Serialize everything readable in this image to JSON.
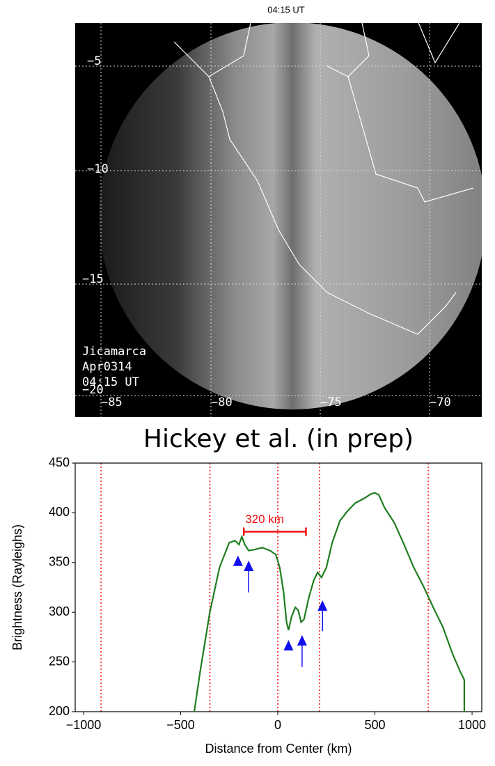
{
  "image": {
    "title": "04:15 UT",
    "lat_labels": [
      "−5",
      "−10",
      "−15",
      "−20"
    ],
    "lon_labels": [
      "−85",
      "−80",
      "−75",
      "−70"
    ],
    "caption": [
      "Jicamarca",
      "Apr0314",
      "04:15 UT"
    ]
  },
  "credit": "Hickey et al. (in prep)",
  "chart_data": {
    "type": "line",
    "xlabel": "Distance from Center (km)",
    "ylabel": "Brightness (Rayleighs)",
    "x": [
      -430,
      -400,
      -350,
      -300,
      -250,
      -220,
      -200,
      -185,
      -170,
      -150,
      -120,
      -80,
      -40,
      -10,
      10,
      30,
      45,
      55,
      70,
      90,
      105,
      120,
      135,
      160,
      185,
      205,
      225,
      250,
      280,
      320,
      360,
      400,
      440,
      480,
      500,
      520,
      550,
      600,
      650,
      700,
      750,
      800,
      850,
      900,
      940,
      960,
      960
    ],
    "values": [
      200,
      240,
      300,
      345,
      370,
      372,
      368,
      376,
      368,
      362,
      363,
      365,
      362,
      358,
      345,
      320,
      290,
      282,
      295,
      305,
      302,
      290,
      293,
      315,
      332,
      340,
      335,
      345,
      370,
      392,
      402,
      410,
      414,
      419,
      420,
      418,
      405,
      390,
      368,
      345,
      326,
      305,
      285,
      258,
      240,
      232,
      200
    ],
    "color": "#1e7d1e",
    "xlim": [
      -1043,
      1050
    ],
    "ylim": [
      200,
      450
    ],
    "xticks": [
      {
        "value": -1000,
        "label": "−1000"
      },
      {
        "value": -500,
        "label": "−500"
      },
      0,
      500,
      1000
    ],
    "yticks": [
      200,
      250,
      300,
      350,
      400,
      450
    ],
    "vlines": [
      -910,
      -350,
      0,
      215,
      775
    ],
    "vline_color": "#ff4444",
    "span": {
      "text": "320 km",
      "x": [
        -175,
        145
      ],
      "y": 381,
      "color": "#ee1111"
    },
    "arrows": [
      {
        "x": -205,
        "y": 357
      },
      {
        "x": -150,
        "y": 352,
        "y_end": 320
      },
      {
        "x": 55,
        "y": 272
      },
      {
        "x": 125,
        "y": 277,
        "y_end": 245
      },
      {
        "x": 230,
        "y": 312,
        "y_end": 281
      }
    ],
    "arrow_color": "#1010ee"
  }
}
